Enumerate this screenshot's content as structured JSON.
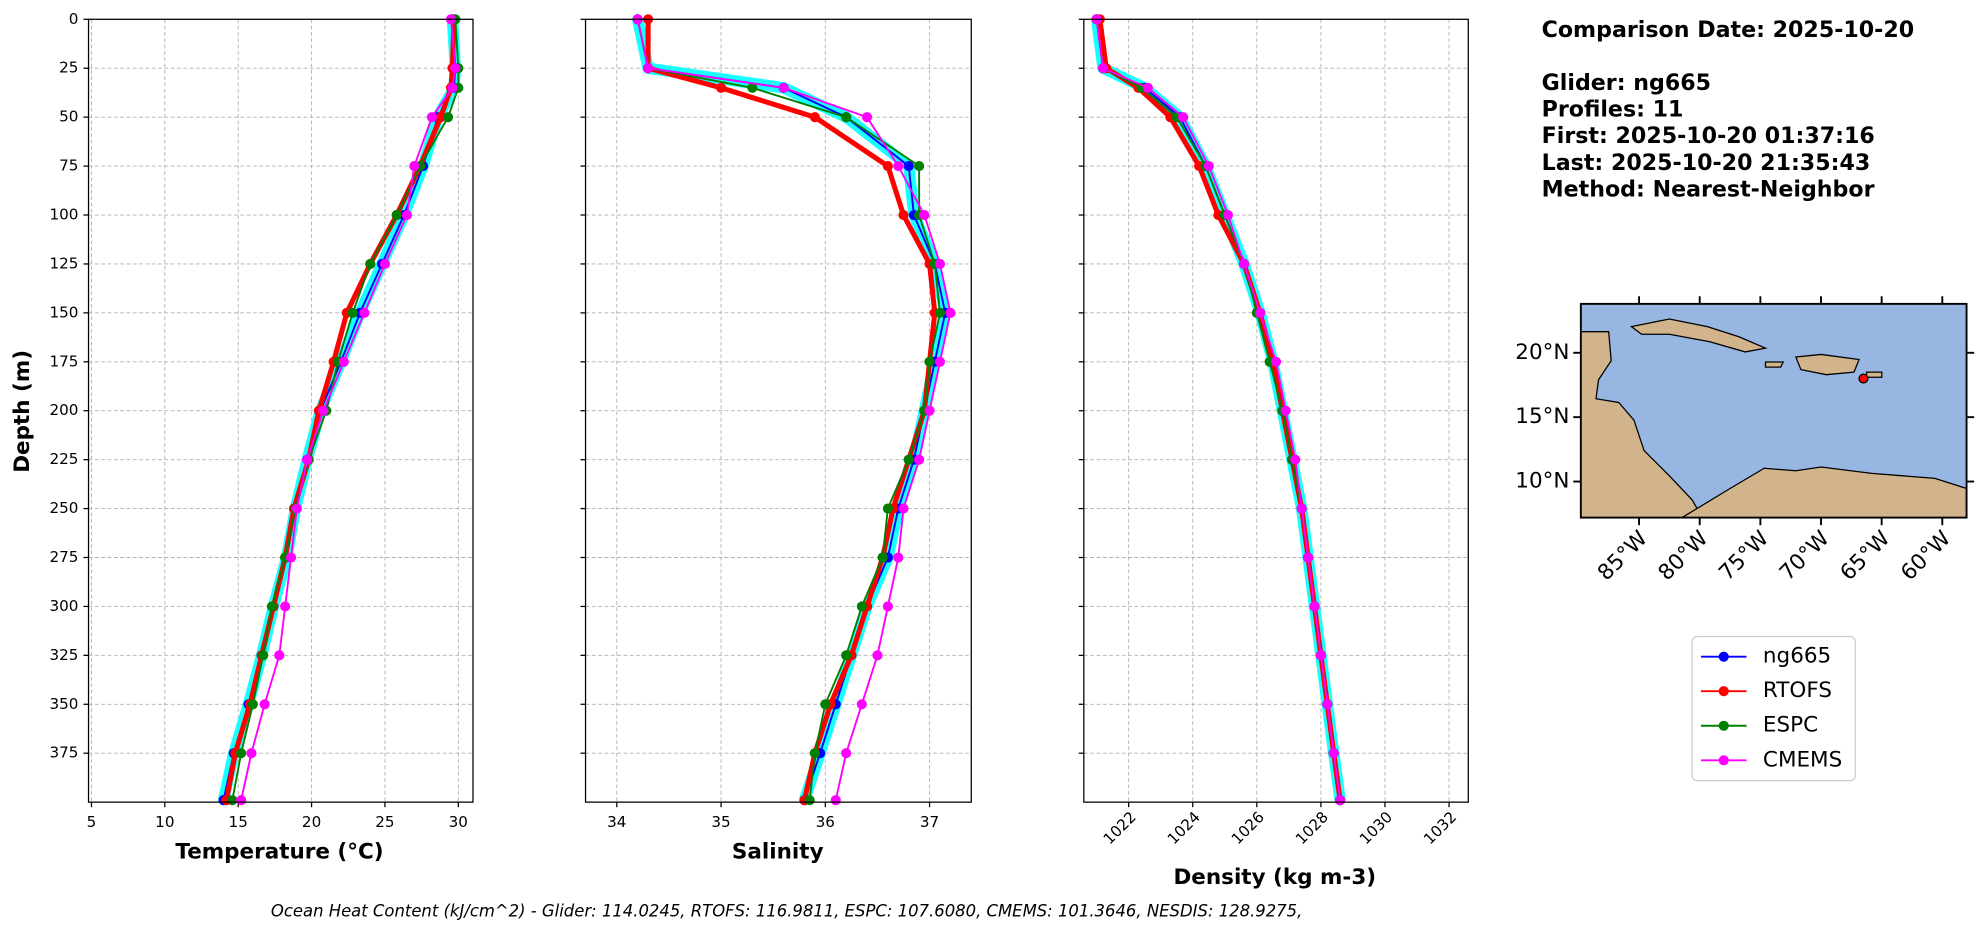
{
  "chart_data": [
    {
      "type": "profile",
      "xlabel": "Temperature (°C)",
      "ylabel": "Depth (m)",
      "xlim": [
        4.8,
        31
      ],
      "xticks": [
        5,
        10,
        15,
        20,
        25,
        30
      ],
      "ylim": [
        400,
        0
      ],
      "yticks": [
        0,
        25,
        50,
        75,
        100,
        125,
        150,
        175,
        200,
        225,
        250,
        275,
        300,
        325,
        350,
        375
      ],
      "grid": true,
      "y": [
        0,
        25,
        35,
        50,
        75,
        100,
        125,
        150,
        175,
        200,
        225,
        250,
        275,
        300,
        325,
        350,
        375,
        399
      ],
      "series": [
        {
          "color": "#00ffff",
          "values": [
            29.6,
            29.8,
            29.7,
            28.6,
            27.6,
            26.3,
            24.8,
            23.3,
            22.0,
            20.6,
            19.7,
            18.9,
            18.3,
            17.4,
            16.6,
            15.7,
            14.7,
            14.0
          ]
        },
        {
          "name": "ng665",
          "color": "#0000ff",
          "values": [
            29.6,
            29.8,
            29.7,
            28.6,
            27.6,
            26.3,
            24.8,
            23.3,
            22.0,
            20.6,
            19.7,
            18.9,
            18.3,
            17.4,
            16.6,
            15.7,
            14.7,
            14.0
          ]
        },
        {
          "name": "RTOFS",
          "color": "#ff0000",
          "values": [
            29.7,
            29.6,
            29.5,
            28.8,
            27.4,
            25.8,
            24.0,
            22.4,
            21.5,
            20.5,
            19.8,
            18.8,
            18.2,
            17.4,
            16.6,
            15.8,
            14.8,
            14.2
          ]
        },
        {
          "name": "ESPC",
          "color": "#008000",
          "values": [
            29.8,
            30.0,
            30.0,
            29.3,
            27.4,
            25.8,
            24.0,
            22.8,
            21.8,
            21.0,
            19.8,
            18.9,
            18.2,
            17.3,
            16.7,
            16.0,
            15.2,
            14.6
          ]
        },
        {
          "name": "CMEMS",
          "color": "#ff00ff",
          "values": [
            29.5,
            29.8,
            29.6,
            28.2,
            27.0,
            26.5,
            25.0,
            23.6,
            22.2,
            20.8,
            19.7,
            19.0,
            18.6,
            18.2,
            17.8,
            16.8,
            15.9,
            15.2
          ]
        }
      ]
    },
    {
      "type": "profile",
      "xlabel": "Salinity",
      "xlim": [
        33.7,
        37.4
      ],
      "xticks": [
        34,
        35,
        36,
        37
      ],
      "ylim": [
        400,
        0
      ],
      "yticks": [
        0,
        25,
        50,
        75,
        100,
        125,
        150,
        175,
        200,
        225,
        250,
        275,
        300,
        325,
        350,
        375
      ],
      "grid": true,
      "y": [
        0,
        25,
        35,
        50,
        75,
        100,
        125,
        150,
        175,
        200,
        225,
        250,
        275,
        300,
        325,
        350,
        375,
        399
      ],
      "series": [
        {
          "color": "#00ffff",
          "values": [
            34.2,
            34.3,
            35.6,
            36.2,
            36.8,
            36.85,
            37.05,
            37.15,
            37.05,
            36.95,
            36.85,
            36.7,
            36.6,
            36.4,
            36.25,
            36.1,
            35.95,
            35.8
          ]
        },
        {
          "color": "#0000ff",
          "values": [
            34.2,
            34.3,
            35.6,
            36.2,
            36.8,
            36.85,
            37.05,
            37.15,
            37.05,
            36.95,
            36.85,
            36.7,
            36.6,
            36.4,
            36.25,
            36.1,
            35.95,
            35.8
          ]
        },
        {
          "color": "#ff0000",
          "values": [
            34.3,
            34.3,
            35.0,
            35.9,
            36.6,
            36.75,
            37.0,
            37.05,
            37.0,
            36.95,
            36.8,
            36.65,
            36.55,
            36.4,
            36.25,
            36.05,
            35.9,
            35.8
          ]
        },
        {
          "color": "#008000",
          "values": [
            34.2,
            34.3,
            35.3,
            36.2,
            36.9,
            36.9,
            37.05,
            37.1,
            37.0,
            36.95,
            36.8,
            36.6,
            36.55,
            36.35,
            36.2,
            36.0,
            35.9,
            35.85
          ]
        },
        {
          "color": "#ff00ff",
          "values": [
            34.2,
            34.3,
            35.6,
            36.4,
            36.7,
            36.95,
            37.1,
            37.2,
            37.1,
            37.0,
            36.9,
            36.75,
            36.7,
            36.6,
            36.5,
            36.35,
            36.2,
            36.1
          ]
        }
      ]
    },
    {
      "type": "profile",
      "xlabel": "Density (kg m-3)",
      "xlim": [
        1020.6,
        1032.6
      ],
      "xticks": [
        1022,
        1024,
        1026,
        1028,
        1030,
        1032
      ],
      "ylim": [
        400,
        0
      ],
      "yticks": [
        0,
        25,
        50,
        75,
        100,
        125,
        150,
        175,
        200,
        225,
        250,
        275,
        300,
        325,
        350,
        375
      ],
      "grid": true,
      "y": [
        0,
        25,
        35,
        50,
        75,
        100,
        125,
        150,
        175,
        200,
        225,
        250,
        275,
        300,
        325,
        350,
        375,
        399
      ],
      "series": [
        {
          "color": "#00ffff",
          "values": [
            1021.0,
            1021.2,
            1022.5,
            1023.6,
            1024.4,
            1025.0,
            1025.6,
            1026.1,
            1026.5,
            1026.8,
            1027.1,
            1027.4,
            1027.6,
            1027.8,
            1028.0,
            1028.2,
            1028.4,
            1028.6
          ]
        },
        {
          "color": "#0000ff",
          "values": [
            1021.0,
            1021.2,
            1022.5,
            1023.6,
            1024.4,
            1025.0,
            1025.6,
            1026.1,
            1026.5,
            1026.8,
            1027.1,
            1027.4,
            1027.6,
            1027.8,
            1028.0,
            1028.2,
            1028.4,
            1028.6
          ]
        },
        {
          "color": "#ff0000",
          "values": [
            1021.1,
            1021.3,
            1022.3,
            1023.3,
            1024.2,
            1024.8,
            1025.6,
            1026.1,
            1026.5,
            1026.8,
            1027.1,
            1027.4,
            1027.6,
            1027.8,
            1028.0,
            1028.2,
            1028.4,
            1028.6
          ]
        },
        {
          "color": "#008000",
          "values": [
            1021.0,
            1021.2,
            1022.4,
            1023.5,
            1024.4,
            1025.0,
            1025.6,
            1026.0,
            1026.4,
            1026.8,
            1027.1,
            1027.4,
            1027.6,
            1027.8,
            1028.0,
            1028.2,
            1028.4,
            1028.6
          ]
        },
        {
          "color": "#ff00ff",
          "values": [
            1021.0,
            1021.2,
            1022.6,
            1023.7,
            1024.5,
            1025.1,
            1025.6,
            1026.1,
            1026.6,
            1026.9,
            1027.2,
            1027.4,
            1027.6,
            1027.8,
            1028.0,
            1028.2,
            1028.4,
            1028.6
          ]
        }
      ]
    },
    {
      "type": "map",
      "xlim": [
        -89.8,
        -58
      ],
      "ylim": [
        7.2,
        23.8
      ],
      "xticks": [
        {
          "value": -85,
          "label": "85°W"
        },
        {
          "value": -80,
          "label": "80°W"
        },
        {
          "value": -75,
          "label": "75°W"
        },
        {
          "value": -70,
          "label": "70°W"
        },
        {
          "value": -65,
          "label": "65°W"
        },
        {
          "value": -60,
          "label": "60°W"
        }
      ],
      "yticks": [
        {
          "value": 10,
          "label": "10°N"
        },
        {
          "value": 15,
          "label": "15°N"
        },
        {
          "value": 20,
          "label": "20°N"
        }
      ],
      "point": {
        "lon": -66.5,
        "lat": 18.0,
        "color": "#ff0000"
      }
    }
  ],
  "info": {
    "date": "Comparison Date: 2025-10-20",
    "glider": "Glider: ng665",
    "profiles": "Profiles: 11",
    "first": "First: 2025-10-20 01:37:16",
    "last": "Last: 2025-10-20 21:35:43",
    "method": "Method: Nearest-Neighbor"
  },
  "footnote": "Ocean Heat Content (kJ/cm^2) - Glider: 114.0245,  RTOFS: 116.9811,  ESPC: 107.6080,  CMEMS: 101.3646,  NESDIS: 128.9275,"
}
